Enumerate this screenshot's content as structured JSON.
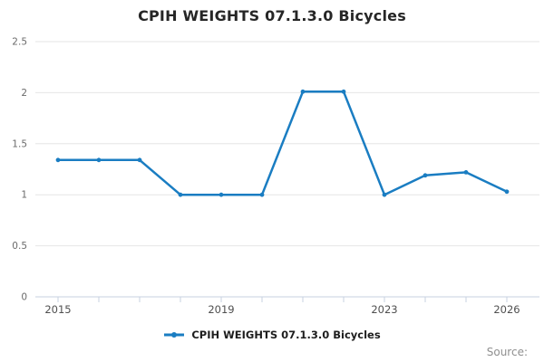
{
  "title": "CPIH WEIGHTS 07.1.3.0 Bicycles",
  "legend": {
    "label": "CPIH WEIGHTS 07.1.3.0 Bicycles"
  },
  "source_label": "Source:",
  "colors": {
    "line": "#1a7dc2",
    "marker": "#1a7dc2",
    "grid": "#e6e6e6",
    "axis": "#c7d2e0",
    "y_label_text": "#6b6b6b",
    "x_label_text": "#4f4f4f",
    "title_text": "#262626",
    "source_text": "#8f8f8f"
  },
  "chart_data": {
    "type": "line",
    "title": "CPIH WEIGHTS 07.1.3.0 Bicycles",
    "x": [
      2015,
      2016,
      2017,
      2018,
      2019,
      2020,
      2021,
      2022,
      2023,
      2024,
      2025,
      2026
    ],
    "series": [
      {
        "name": "CPIH WEIGHTS 07.1.3.0 Bicycles",
        "values": [
          1.34,
          1.34,
          1.34,
          1.0,
          1.0,
          1.0,
          2.01,
          2.01,
          1.0,
          1.19,
          1.22,
          1.03
        ]
      }
    ],
    "xlabel": "",
    "ylabel": "",
    "ylim": [
      0,
      2.5
    ],
    "yticks": [
      0,
      0.5,
      1,
      1.5,
      2,
      2.5
    ],
    "ytick_labels": [
      "0",
      "0.5",
      "1",
      "1.5",
      "2",
      "2.5"
    ],
    "xtick_labeled_years": [
      2015,
      2019,
      2023,
      2026
    ],
    "grid": true,
    "legend_position": "bottom",
    "marker": "dot"
  }
}
